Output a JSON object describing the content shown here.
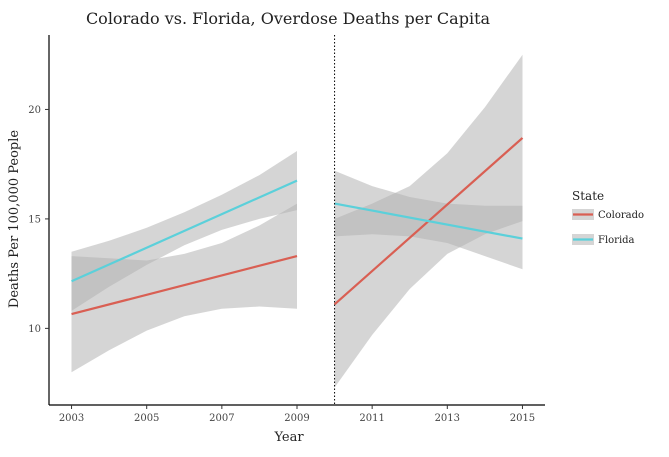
{
  "chart_data": {
    "type": "line",
    "title": "Colorado vs. Florida, Overdose Deaths per Capita",
    "xlabel": "Year",
    "ylabel": "Deaths Per 100,000 People",
    "xlim": [
      2002.4,
      2015.6
    ],
    "ylim": [
      6.5,
      23.4
    ],
    "x_ticks": [
      2003,
      2005,
      2007,
      2009,
      2011,
      2013,
      2015
    ],
    "y_ticks": [
      10,
      15,
      20
    ],
    "cutoff_x": 2010,
    "grid": false,
    "legend": {
      "title": "State",
      "position": "right",
      "entries": [
        "Colorado",
        "Florida"
      ]
    },
    "colors": {
      "Colorado": "#d95f53",
      "Florida": "#5bd0da",
      "band": "#b3b3b3",
      "axis": "#000000",
      "cutoff": "#000000"
    },
    "series": [
      {
        "name": "Colorado",
        "segment": "pre",
        "x": [
          2003,
          2009
        ],
        "y": [
          10.65,
          13.3
        ],
        "ci_x": [
          2003,
          2004,
          2005,
          2006,
          2007,
          2008,
          2009
        ],
        "ci_lower": [
          8.0,
          9.0,
          9.9,
          10.55,
          10.9,
          11.0,
          10.9
        ],
        "ci_upper": [
          13.3,
          13.2,
          13.1,
          13.4,
          13.9,
          14.7,
          15.7
        ]
      },
      {
        "name": "Florida",
        "segment": "pre",
        "x": [
          2003,
          2009
        ],
        "y": [
          12.15,
          16.75
        ],
        "ci_x": [
          2003,
          2004,
          2005,
          2006,
          2007,
          2008,
          2009
        ],
        "ci_lower": [
          10.8,
          11.9,
          12.9,
          13.8,
          14.5,
          15.0,
          15.4
        ],
        "ci_upper": [
          13.5,
          14.0,
          14.6,
          15.3,
          16.1,
          17.0,
          18.1
        ]
      },
      {
        "name": "Colorado",
        "segment": "post",
        "x": [
          2010,
          2015
        ],
        "y": [
          11.1,
          18.7
        ],
        "ci_x": [
          2010,
          2011,
          2012,
          2013,
          2014,
          2015
        ],
        "ci_lower": [
          7.3,
          9.7,
          11.8,
          13.4,
          14.3,
          14.9
        ],
        "ci_upper": [
          15.0,
          15.7,
          16.5,
          18.0,
          20.1,
          22.5
        ]
      },
      {
        "name": "Florida",
        "segment": "post",
        "x": [
          2010,
          2015
        ],
        "y": [
          15.7,
          14.1
        ],
        "ci_x": [
          2010,
          2011,
          2012,
          2013,
          2014,
          2015
        ],
        "ci_lower": [
          14.2,
          14.3,
          14.2,
          13.9,
          13.3,
          12.7
        ],
        "ci_upper": [
          17.2,
          16.5,
          16.0,
          15.7,
          15.6,
          15.6
        ]
      }
    ]
  }
}
